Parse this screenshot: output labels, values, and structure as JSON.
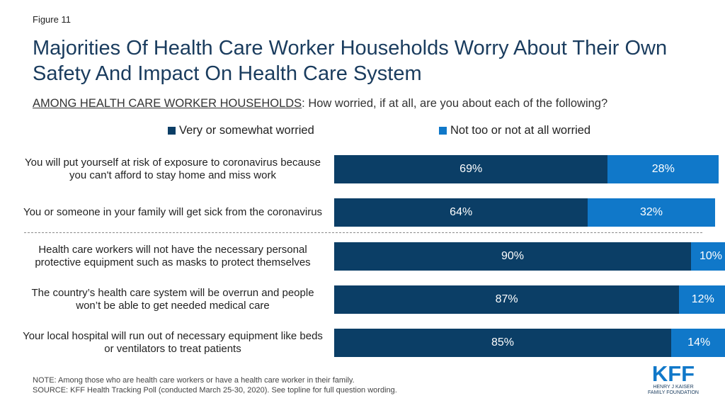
{
  "figure_label": "Figure 11",
  "title": "Majorities Of Health Care Worker Households Worry About Their Own Safety And Impact On Health Care System",
  "subtitle": {
    "underlined": "AMONG HEALTH CARE WORKER HOUSEHOLDS",
    "rest": ": How worried, if at all, are you about each of the following?"
  },
  "colors": {
    "dark": "#0b3e66",
    "light": "#1078c9",
    "title": "#1a3c5e"
  },
  "chart_data": {
    "type": "bar",
    "orientation": "horizontal",
    "stacked": true,
    "xlim": [
      0,
      100
    ],
    "categories": [
      "You will put yourself at risk of exposure to coronavirus because you can't afford to stay home and miss work",
      "You or someone in your family will get sick from the coronavirus",
      "Health care workers will not have the necessary personal protective equipment such as masks to protect themselves",
      "The country’s health care system will be overrun and people won’t be able to get needed medical care",
      "Your local hospital will run out of necessary equipment like beds or ventilators to treat patients"
    ],
    "series": [
      {
        "name": "Very or somewhat worried",
        "color": "#0b3e66",
        "values": [
          69,
          64,
          90,
          87,
          85
        ],
        "labels": [
          "69%",
          "64%",
          "90%",
          "87%",
          "85%"
        ]
      },
      {
        "name": "Not too or not at all worried",
        "color": "#1078c9",
        "values": [
          28,
          32,
          10,
          12,
          14
        ],
        "labels": [
          "28%",
          "32%",
          "10%",
          "12%",
          "14%"
        ]
      }
    ],
    "legend_position": "top",
    "grid": false,
    "divider_after_index": 1
  },
  "note": "NOTE: Among those who are health care workers or have a health care worker in their family.",
  "source": "SOURCE: KFF Health Tracking Poll (conducted March 25-30, 2020). See topline for full question wording.",
  "logo": {
    "main": "KFF",
    "line1": "HENRY J KAISER",
    "line2": "FAMILY FOUNDATION"
  }
}
